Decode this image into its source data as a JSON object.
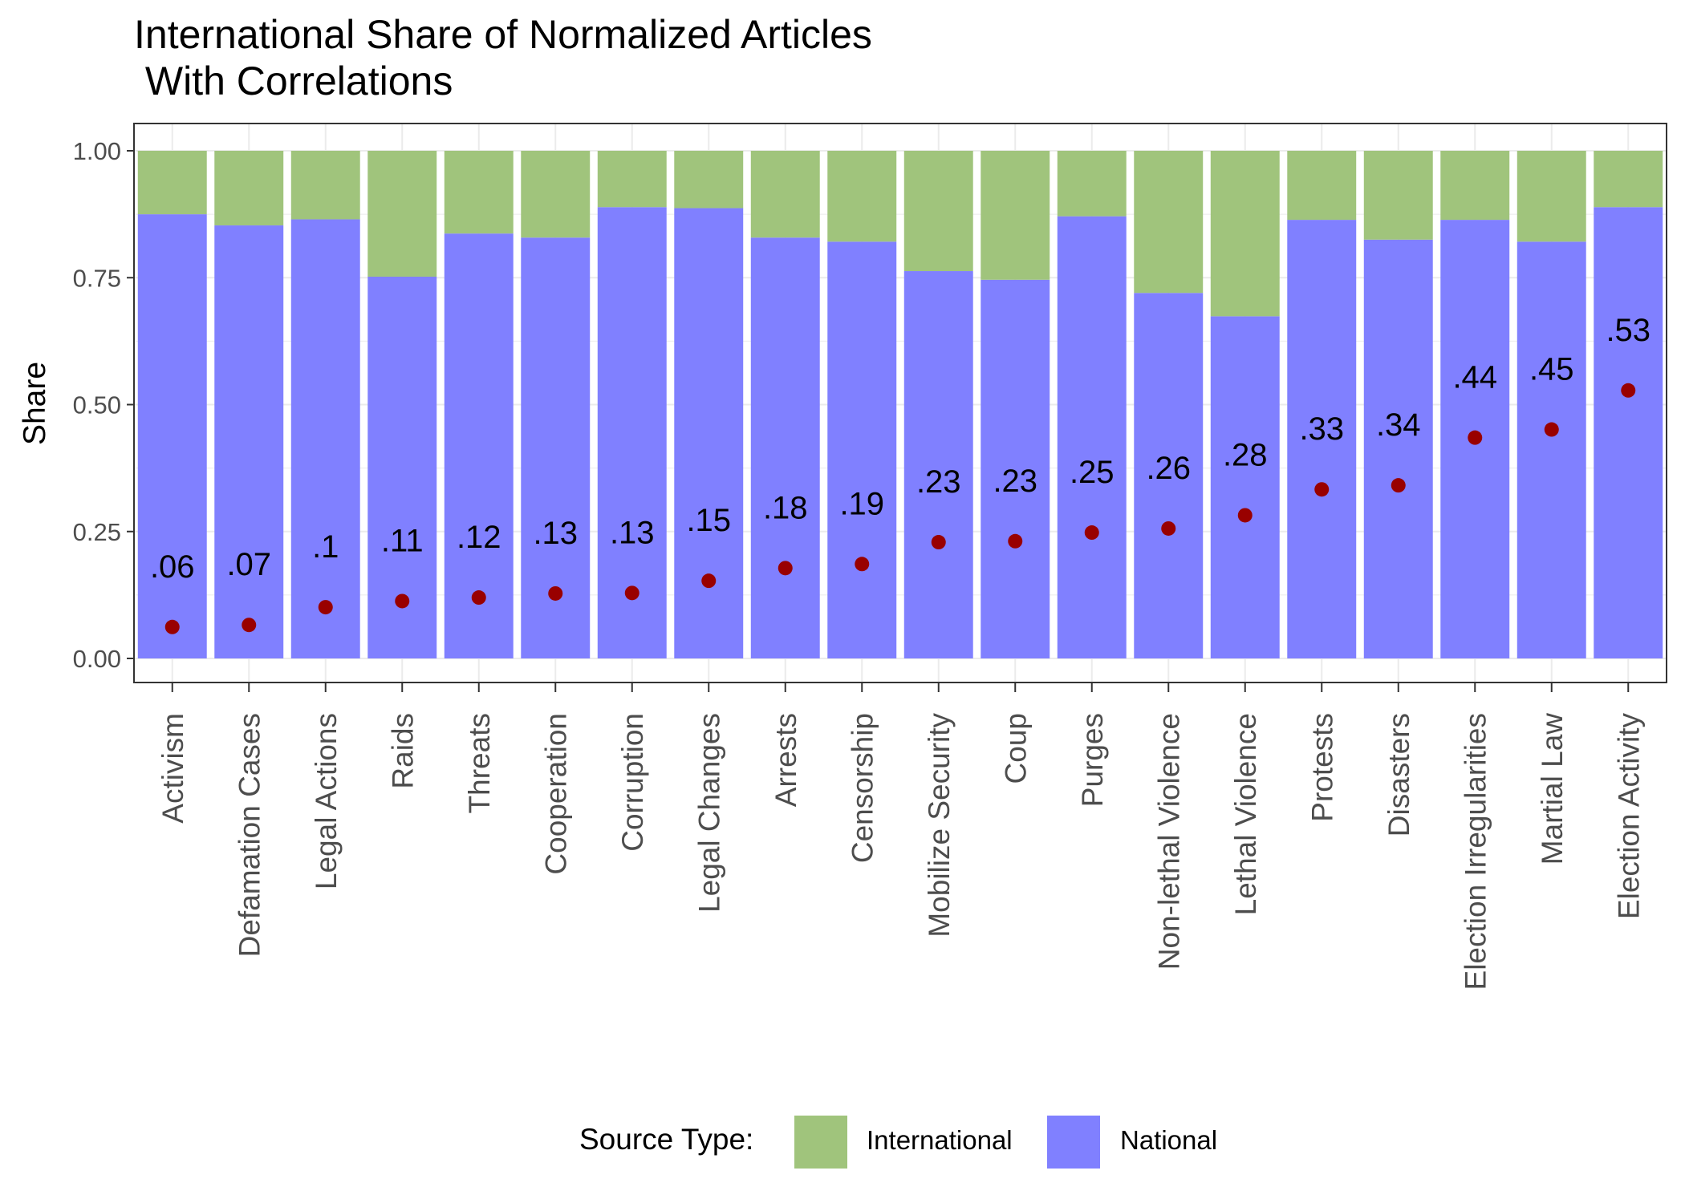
{
  "chart_data": {
    "type": "bar",
    "title": "International Share of Normalized Articles",
    "subtitle": " With Correlations",
    "xlabel": "",
    "ylabel": "Share",
    "ylim": [
      0,
      1
    ],
    "yticks": [
      "0.00",
      "0.25",
      "0.50",
      "0.75",
      "1.00"
    ],
    "grid": true,
    "stacked": true,
    "categories": [
      "Activism",
      "Defamation Cases",
      "Legal Actions",
      "Raids",
      "Threats",
      "Cooperation",
      "Corruption",
      "Legal Changes",
      "Arrests",
      "Censorship",
      "Mobilize Security",
      "Coup",
      "Purges",
      "Non-lethal Violence",
      "Lethal Violence",
      "Protests",
      "Disasters",
      "Election Irregularities",
      "Martial Law",
      "Election Activity"
    ],
    "series": [
      {
        "name": "National",
        "color": "#8080ff",
        "values": [
          0.875,
          0.853,
          0.865,
          0.752,
          0.837,
          0.829,
          0.889,
          0.887,
          0.829,
          0.821,
          0.763,
          0.746,
          0.871,
          0.72,
          0.674,
          0.864,
          0.825,
          0.864,
          0.821,
          0.889
        ]
      },
      {
        "name": "International",
        "color": "#a0c47c",
        "values": [
          0.125,
          0.147,
          0.135,
          0.248,
          0.163,
          0.171,
          0.111,
          0.113,
          0.171,
          0.179,
          0.237,
          0.254,
          0.129,
          0.28,
          0.326,
          0.136,
          0.175,
          0.136,
          0.179,
          0.111
        ]
      }
    ],
    "correlations": {
      "color": "#990000",
      "values": [
        0.062,
        0.066,
        0.101,
        0.113,
        0.12,
        0.128,
        0.129,
        0.153,
        0.178,
        0.186,
        0.229,
        0.231,
        0.248,
        0.256,
        0.282,
        0.333,
        0.341,
        0.435,
        0.451,
        0.528
      ],
      "labels": [
        ".06",
        ".07",
        ".1",
        ".11",
        ".12",
        ".13",
        ".13",
        ".15",
        ".18",
        ".19",
        ".23",
        ".23",
        ".25",
        ".26",
        ".28",
        ".33",
        ".34",
        ".44",
        ".45",
        ".53"
      ]
    },
    "legend": {
      "title": "Source Type:",
      "position": "bottom",
      "entries": [
        "International",
        "National"
      ]
    }
  }
}
